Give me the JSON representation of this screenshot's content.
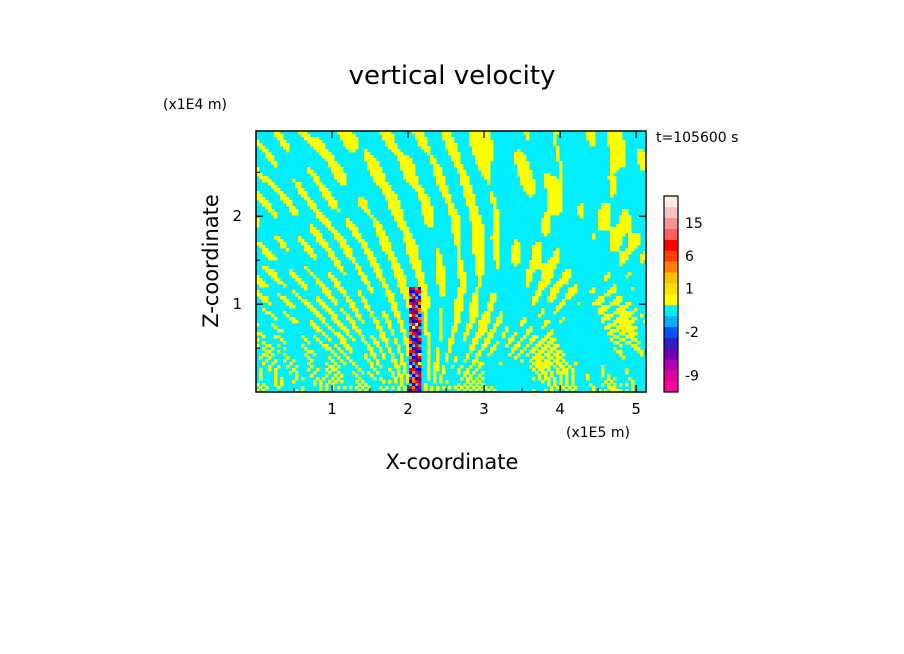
{
  "chart_data": {
    "type": "heatmap",
    "title": "vertical velocity",
    "xlabel": "X-coordinate",
    "ylabel": "Z-coordinate",
    "x_scale_label": "(x1E5 m)",
    "y_scale_label": "(x1E4 m)",
    "time_label": "t=105600 s",
    "xlim": [
      0.0,
      5.13
    ],
    "ylim": [
      0.0,
      2.97
    ],
    "x_ticks": [
      1,
      2,
      3,
      4,
      5
    ],
    "y_ticks": [
      1,
      2
    ],
    "colorbar": {
      "levels": [
        {
          "value": -12,
          "color": "#ff00a0"
        },
        {
          "value": -9,
          "color": "#e0009e"
        },
        {
          "value": -6,
          "color": "#b000b0"
        },
        {
          "value": -4,
          "color": "#7000b8"
        },
        {
          "value": -3,
          "color": "#3020c0"
        },
        {
          "value": -2,
          "color": "#0050ff"
        },
        {
          "value": -1,
          "color": "#00b0ff"
        },
        {
          "value": 0,
          "color": "#00eeff"
        },
        {
          "value": 0.5,
          "color": "#ffff00"
        },
        {
          "value": 1,
          "color": "#ffe000"
        },
        {
          "value": 2,
          "color": "#ffc000"
        },
        {
          "value": 4,
          "color": "#ff8000"
        },
        {
          "value": 6,
          "color": "#ff4000"
        },
        {
          "value": 9,
          "color": "#ff0000"
        },
        {
          "value": 12,
          "color": "#ff6060"
        },
        {
          "value": 15,
          "color": "#ff9090"
        },
        {
          "value": 20,
          "color": "#ffc0c0"
        },
        {
          "value": 25,
          "color": "#ffe8e8"
        }
      ],
      "labels": [
        15,
        6,
        1,
        -2,
        -9
      ]
    },
    "field": {
      "background_color": "#00eeff",
      "positive_color": "#ffff00",
      "strong_colors": [
        "#ff0000",
        "#0000ff",
        "#ff8000",
        "#800080"
      ],
      "jet_x": 2.08
    }
  }
}
